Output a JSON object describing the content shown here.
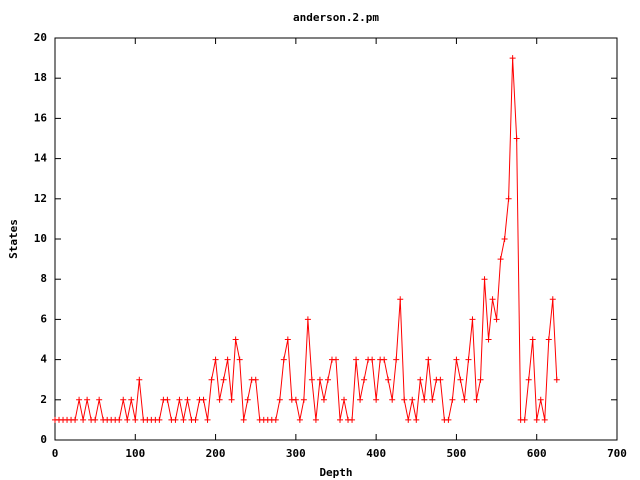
{
  "chart_data": {
    "type": "line",
    "title": "anderson.2.pm",
    "x_label": "Depth",
    "y_label": "States",
    "series": [
      {
        "name": "anderson.2.pm",
        "color": "#ff0000",
        "x": [
          0,
          5,
          10,
          15,
          20,
          25,
          30,
          35,
          40,
          45,
          50,
          55,
          60,
          65,
          70,
          75,
          80,
          85,
          90,
          95,
          100,
          105,
          110,
          115,
          120,
          125,
          130,
          135,
          140,
          145,
          150,
          155,
          160,
          165,
          170,
          175,
          180,
          185,
          190,
          195,
          200,
          205,
          210,
          215,
          220,
          225,
          230,
          235,
          240,
          245,
          250,
          255,
          260,
          265,
          270,
          275,
          280,
          285,
          290,
          295,
          300,
          305,
          310,
          315,
          320,
          325,
          330,
          335,
          340,
          345,
          350,
          355,
          360,
          365,
          370,
          375,
          380,
          385,
          390,
          395,
          400,
          405,
          410,
          415,
          420,
          425,
          430,
          435,
          440,
          445,
          450,
          455,
          460,
          465,
          470,
          475,
          480,
          485,
          490,
          495,
          500,
          505,
          510,
          515,
          520,
          525,
          530,
          535,
          540,
          545,
          550,
          555,
          560,
          565,
          570,
          575,
          580,
          585,
          590,
          595,
          600,
          605,
          610,
          615,
          620,
          625
        ],
        "values": [
          1,
          1,
          1,
          1,
          1,
          1,
          2,
          1,
          2,
          1,
          1,
          2,
          1,
          1,
          1,
          1,
          1,
          2,
          1,
          2,
          1,
          3,
          1,
          1,
          1,
          1,
          1,
          2,
          2,
          1,
          1,
          2,
          1,
          2,
          1,
          1,
          2,
          2,
          1,
          3,
          4,
          2,
          3,
          4,
          2,
          5,
          4,
          1,
          2,
          3,
          3,
          1,
          1,
          1,
          1,
          1,
          2,
          4,
          5,
          2,
          2,
          1,
          2,
          6,
          3,
          1,
          3,
          2,
          3,
          4,
          4,
          1,
          2,
          1,
          1,
          4,
          2,
          3,
          4,
          4,
          2,
          4,
          4,
          3,
          2,
          4,
          7,
          2,
          1,
          2,
          1,
          3,
          2,
          4,
          2,
          3,
          3,
          1,
          1,
          2,
          4,
          3,
          2,
          4,
          6,
          2,
          3,
          8,
          5,
          7,
          6,
          9,
          10,
          12,
          19,
          15,
          1,
          1,
          3,
          5,
          1,
          2,
          1,
          5,
          7,
          3
        ]
      }
    ],
    "xlim": [
      0,
      700
    ],
    "xticks": [
      0,
      100,
      200,
      300,
      400,
      500,
      600,
      700
    ],
    "ylim": [
      0,
      20
    ],
    "yticks": [
      0,
      2,
      4,
      6,
      8,
      10,
      12,
      14,
      16,
      18,
      20
    ]
  }
}
